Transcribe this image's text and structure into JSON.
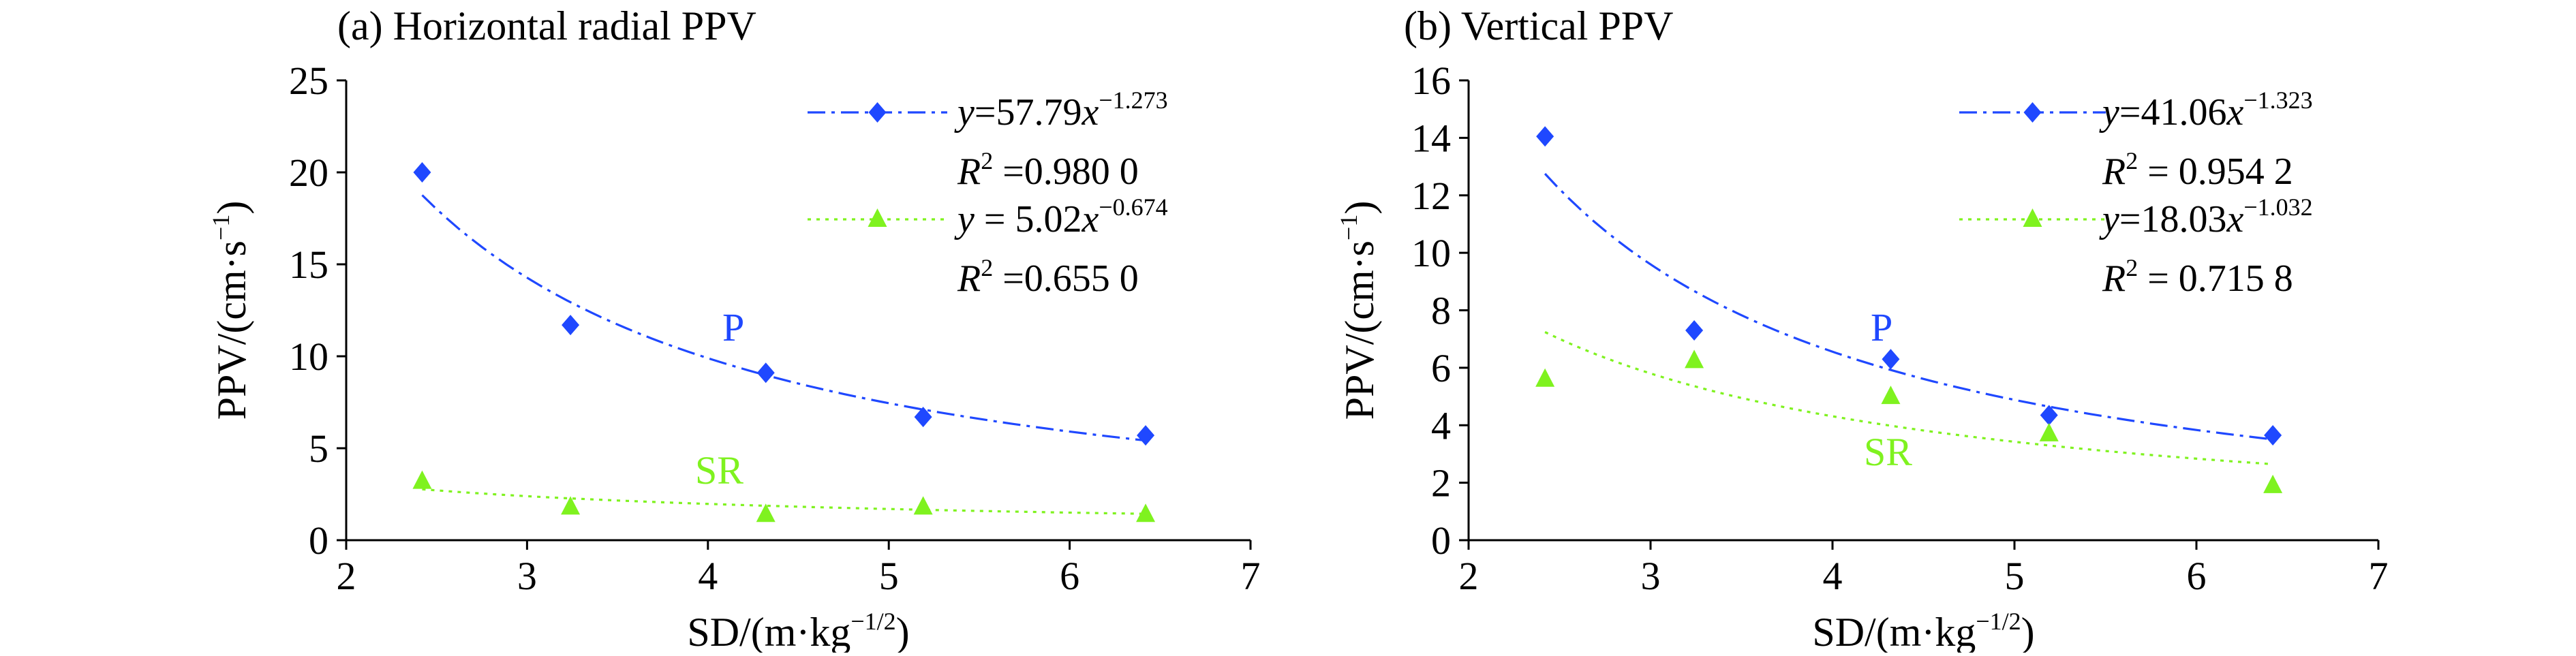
{
  "colors": {
    "P": "#1f48ff",
    "SR": "#7ff21f",
    "axis": "#000000"
  },
  "chart_data": [
    {
      "type": "scatter",
      "title": "(a) Horizontal radial PPV",
      "xlabel": "SD/(m·kg",
      "xlabel_sup": "−1/2",
      "xlabel_tail": ")",
      "ylabel": "PPV/(cm·s",
      "ylabel_sup": "−1",
      "ylabel_tail": ")",
      "xlim": [
        2,
        7
      ],
      "ylim": [
        0,
        25
      ],
      "xticks": [
        "2",
        "3",
        "4",
        "5",
        "6",
        "7"
      ],
      "yticks": [
        "0",
        "5",
        "10",
        "15",
        "20",
        "25"
      ],
      "series": [
        {
          "name": "P",
          "marker": "diamond",
          "x": [
            2.42,
            3.24,
            4.32,
            5.19,
            6.42
          ],
          "y": [
            20.0,
            11.7,
            9.1,
            6.7,
            5.7
          ],
          "fit": {
            "a": 57.79,
            "b": -1.273
          },
          "eq_prefix": "y",
          "eq_mid": "=57.79",
          "eq_x": "x",
          "eq_exp": "−1.273",
          "r2_label": "R",
          "r2_sup": "2",
          "r2_value": " =0.980 0"
        },
        {
          "name": "SR",
          "marker": "triangle",
          "x": [
            2.42,
            3.24,
            4.32,
            5.19,
            6.42
          ],
          "y": [
            3.2,
            1.8,
            1.4,
            1.8,
            1.4
          ],
          "fit": {
            "a": 5.02,
            "b": -0.674
          },
          "eq_prefix": "y",
          "eq_mid": " = 5.02",
          "eq_x": "x",
          "eq_exp": "−0.674",
          "r2_label": "R",
          "r2_sup": "2",
          "r2_value": " =0.655 0"
        }
      ]
    },
    {
      "type": "scatter",
      "title": "(b) Vertical PPV",
      "xlabel": "SD/(m·kg",
      "xlabel_sup": "−1/2",
      "xlabel_tail": ")",
      "ylabel": "PPV/(cm·s",
      "ylabel_sup": "−1",
      "ylabel_tail": ")",
      "xlim": [
        2,
        7
      ],
      "ylim": [
        0,
        16
      ],
      "xticks": [
        "2",
        "3",
        "4",
        "5",
        "6",
        "7"
      ],
      "yticks": [
        "0",
        "2",
        "4",
        "6",
        "8",
        "10",
        "12",
        "14",
        "16"
      ],
      "series": [
        {
          "name": "P",
          "marker": "diamond",
          "x": [
            2.42,
            3.24,
            4.32,
            5.19,
            6.42
          ],
          "y": [
            14.05,
            7.3,
            6.3,
            4.35,
            3.65
          ],
          "fit": {
            "a": 41.06,
            "b": -1.323
          },
          "eq_prefix": "y",
          "eq_mid": "=41.06",
          "eq_x": "x",
          "eq_exp": "−1.323",
          "r2_label": "R",
          "r2_sup": "2",
          "r2_value": " = 0.954 2"
        },
        {
          "name": "SR",
          "marker": "triangle",
          "x": [
            2.42,
            3.24,
            4.32,
            5.19,
            6.42
          ],
          "y": [
            5.6,
            6.25,
            5.0,
            3.7,
            1.9
          ],
          "fit": {
            "a": 18.03,
            "b": -1.032
          },
          "eq_prefix": "y",
          "eq_mid": "=18.03",
          "eq_x": "x",
          "eq_exp": "−1.032",
          "r2_label": "R",
          "r2_sup": "2",
          "r2_value": " = 0.715 8"
        }
      ]
    }
  ]
}
